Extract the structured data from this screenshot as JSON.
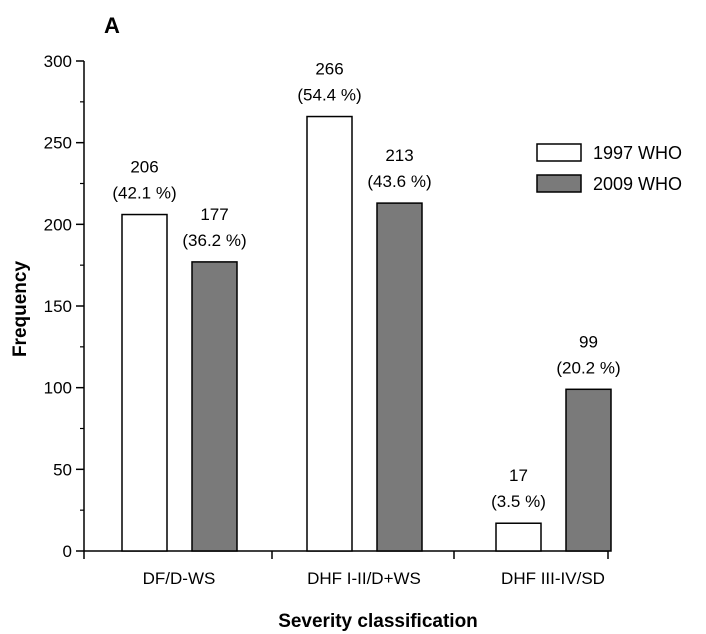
{
  "panel_letter": "A",
  "chart_data": {
    "type": "bar",
    "xlabel": "Severity classification",
    "ylabel": "Frequency",
    "ylim": [
      0,
      300
    ],
    "yticks": [
      0,
      50,
      100,
      150,
      200,
      250,
      300
    ],
    "categories": [
      "DF/D-WS",
      "DHF I-II/D+WS",
      "DHF III-IV/SD"
    ],
    "series": [
      {
        "name": "1997 WHO",
        "color": "#ffffff",
        "values": [
          206,
          266,
          17
        ],
        "labels": [
          [
            "206",
            "(42.1 %)"
          ],
          [
            "266",
            "(54.4 %)"
          ],
          [
            "17",
            "(3.5 %)"
          ]
        ]
      },
      {
        "name": "2009 WHO",
        "color": "#7a7a7a",
        "values": [
          177,
          213,
          99
        ],
        "labels": [
          [
            "177",
            "(36.2 %)"
          ],
          [
            "213",
            "(43.6 %)"
          ],
          [
            "99",
            "(20.2 %)"
          ]
        ]
      }
    ],
    "legend_position": "top-right",
    "grid": false
  }
}
